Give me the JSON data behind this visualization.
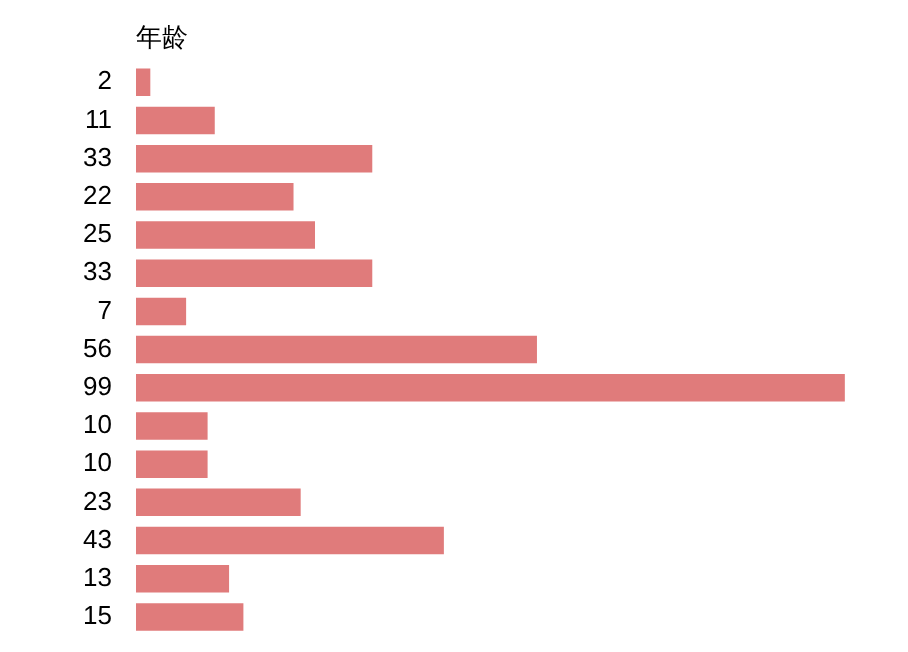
{
  "chart_data": {
    "type": "bar",
    "orientation": "horizontal",
    "title": "年龄",
    "categories": [
      null,
      null,
      null,
      null,
      null,
      null,
      null,
      null,
      null,
      null,
      null,
      null,
      null,
      null,
      null
    ],
    "values": [
      2,
      11,
      33,
      22,
      25,
      33,
      7,
      56,
      99,
      10,
      10,
      23,
      43,
      13,
      15
    ],
    "color": "#e07b7b",
    "data_labels": true
  }
}
